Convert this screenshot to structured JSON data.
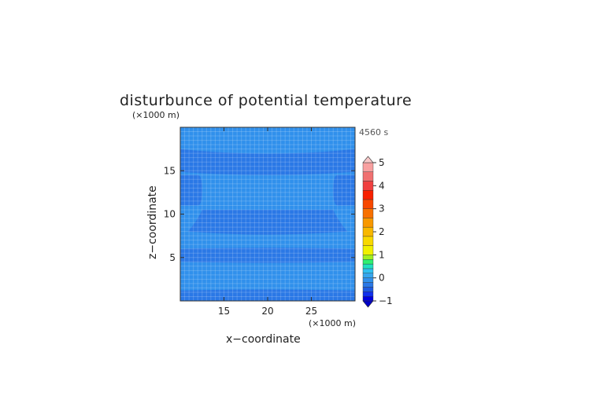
{
  "chart_data": {
    "type": "heatmap",
    "title": "disturbunce of potential temperature",
    "time_label": "4560 s",
    "xlabel": "x−coordinate",
    "ylabel": "z−coordinate",
    "x_unit": "(×1000 m)",
    "z_unit": "(×1000 m)",
    "xlim": [
      10,
      30
    ],
    "ylim": [
      0,
      20
    ],
    "x_ticks": [
      15,
      20,
      25
    ],
    "x_tick_labels": [
      "15",
      "20",
      "25"
    ],
    "y_ticks": [
      5,
      10,
      15
    ],
    "y_tick_labels": [
      "5",
      "10",
      "15"
    ],
    "levels": [
      -1.0,
      -0.8,
      -0.6,
      -0.4,
      -0.2,
      0.0,
      0.2,
      0.4,
      0.6,
      0.8,
      1.0,
      1.4,
      1.8,
      2.2,
      2.6,
      3.0,
      3.4,
      3.8,
      4.2,
      4.6,
      5.0
    ],
    "level_colors": [
      "#0000e0",
      "#1030ee",
      "#1e5ae0",
      "#2a78e6",
      "#3090ec",
      "#36a6ee",
      "#30c0f0",
      "#20e0c0",
      "#30f070",
      "#a0f020",
      "#f0f000",
      "#f8d800",
      "#f8b800",
      "#f89800",
      "#f87000",
      "#f84800",
      "#f82000",
      "#f04040",
      "#f07070",
      "#f8a0a0"
    ],
    "colorbar_ticks": [
      -1,
      0,
      1,
      2,
      3,
      4,
      5
    ],
    "colorbar_tick_labels": [
      "−1",
      "0",
      "1",
      "2",
      "3",
      "4",
      "5"
    ],
    "regions": [
      {
        "name": "bottom band",
        "z": [
          0.0,
          1.2
        ],
        "value": -0.3
      },
      {
        "name": "lower layer",
        "z": [
          1.2,
          4.5
        ],
        "value": -0.1
      },
      {
        "name": "lower negative band",
        "z": [
          4.5,
          6.0
        ],
        "value": -0.3
      },
      {
        "name": "middle layer",
        "z": [
          6.0,
          10.5
        ],
        "value": -0.1
      },
      {
        "name": "central negative lens",
        "z": [
          8.0,
          10.5
        ],
        "x": [
          12.5,
          27.5
        ],
        "value": -0.3
      },
      {
        "name": "side anomalies",
        "z": [
          11.0,
          14.5
        ],
        "x_edges": [
          10.0,
          12.5,
          27.5,
          30.0
        ],
        "value": -0.3
      },
      {
        "name": "upper negative lens",
        "z": [
          14.5,
          17.5
        ],
        "x": [
          10.0,
          30.0
        ],
        "value": -0.3
      },
      {
        "name": "top layer",
        "z": [
          17.5,
          20.0
        ],
        "value": -0.1
      }
    ],
    "grid": true,
    "legend": "right colorbar"
  }
}
